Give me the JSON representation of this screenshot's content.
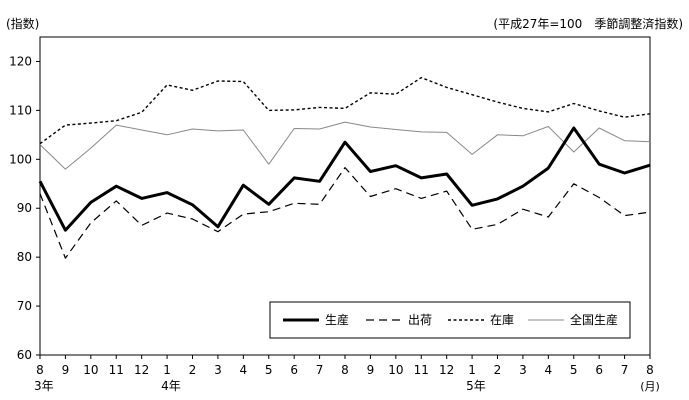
{
  "chart_data": {
    "type": "line",
    "unit_label": "(指数)",
    "subtitle": "(平成27年=100　季節調整済指数)",
    "ylim": [
      60,
      125
    ],
    "yticks": [
      60,
      70,
      80,
      90,
      100,
      110,
      120
    ],
    "grid": false,
    "legend_position": "bottom-right",
    "x_tick_labels": [
      "8",
      "9",
      "10",
      "11",
      "12",
      "1",
      "2",
      "3",
      "4",
      "5",
      "6",
      "7",
      "8",
      "9",
      "10",
      "11",
      "12",
      "1",
      "2",
      "3",
      "4",
      "5",
      "6",
      "7",
      "8"
    ],
    "x_group_labels": [
      {
        "index": 0,
        "label": "3年"
      },
      {
        "index": 5,
        "label": "4年"
      },
      {
        "index": 17,
        "label": "5年"
      }
    ],
    "x_unit_label": "(月)",
    "series": [
      {
        "name": "生産",
        "style": "solid-thick",
        "color": "#000000",
        "values": [
          95.5,
          85.5,
          91.2,
          94.5,
          92.0,
          93.2,
          90.7,
          86.2,
          94.7,
          90.8,
          96.2,
          95.5,
          103.5,
          97.5,
          98.7,
          96.2,
          97.0,
          90.6,
          91.9,
          94.5,
          98.2,
          106.4,
          99.0,
          97.2,
          98.8
        ]
      },
      {
        "name": "出荷",
        "style": "dashed",
        "color": "#000000",
        "values": [
          93.0,
          79.8,
          87.0,
          91.5,
          86.5,
          89.0,
          87.8,
          85.2,
          88.8,
          89.3,
          91.0,
          90.8,
          98.3,
          92.4,
          94.0,
          92.0,
          93.5,
          85.7,
          86.7,
          89.8,
          88.2,
          95.0,
          92.2,
          88.5,
          89.2
        ]
      },
      {
        "name": "在庫",
        "style": "dotted",
        "color": "#000000",
        "values": [
          103.2,
          107.0,
          107.4,
          107.9,
          109.6,
          115.2,
          114.1,
          116.0,
          115.9,
          110.0,
          110.1,
          110.6,
          110.4,
          113.6,
          113.3,
          116.7,
          114.7,
          113.2,
          111.7,
          110.4,
          109.7,
          111.4,
          109.9,
          108.6,
          109.3
        ]
      },
      {
        "name": "全国生産",
        "style": "solid-thin",
        "color": "#888888",
        "values": [
          103.0,
          98.0,
          102.3,
          107.0,
          106.0,
          105.0,
          106.2,
          105.8,
          106.0,
          99.0,
          106.3,
          106.2,
          107.6,
          106.6,
          106.1,
          105.6,
          105.5,
          101.0,
          105.0,
          104.8,
          106.7,
          101.5,
          106.4,
          103.8,
          103.6
        ]
      }
    ]
  }
}
